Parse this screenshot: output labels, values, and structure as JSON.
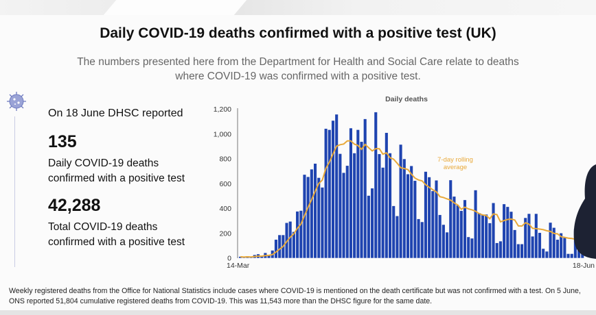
{
  "header": {
    "title": "Daily COVID-19 deaths confirmed with a positive test (UK)",
    "subtitle": "The numbers presented here from the Department for Health and Social Care relate to deaths where COVID-19 was confirmed with a positive test."
  },
  "summary": {
    "reported_on": "On 18 June DHSC reported",
    "daily_value": "135",
    "daily_label": "Daily COVID-19 deaths confirmed with a positive test",
    "total_value": "42,288",
    "total_label": "Total COVID-19 deaths confirmed with a positive test",
    "icon": "virus-icon"
  },
  "footnote": "Weekly registered deaths from the Office for National Statistics include cases where COVID-19 is mentioned on the death certificate but was not confirmed with a test. On 5 June, ONS reported 51,804 cumulative registered deaths from COVID-19. This was 11,543 more than the DHSC figure for the same date.",
  "chart_data": {
    "type": "bar",
    "title": "Daily deaths",
    "x_start": "14-Mar",
    "x_end": "18-Jun",
    "xtick_labels": [
      "14-Mar",
      "18-Jun"
    ],
    "ytick_labels": [
      "0",
      "200",
      "400",
      "600",
      "800",
      "1,000",
      "1,200"
    ],
    "ylim": [
      0,
      1200
    ],
    "grid": false,
    "bar_color": "#1f44b0",
    "line_color": "#e8a93a",
    "line_annotation": "7-day rolling average",
    "values": [
      10,
      4,
      14,
      6,
      24,
      30,
      12,
      40,
      20,
      60,
      147,
      184,
      184,
      282,
      293,
      210,
      374,
      380,
      670,
      652,
      713,
      759,
      645,
      567,
      1040,
      1031,
      1105,
      1155,
      838,
      685,
      742,
      1044,
      843,
      1031,
      935,
      1118,
      501,
      560,
      1173,
      836,
      727,
      1007,
      843,
      418,
      337,
      912,
      796,
      674,
      740,
      621,
      313,
      289,
      694,
      650,
      538,
      624,
      346,
      267,
      206,
      626,
      494,
      424,
      379,
      466,
      168,
      157,
      545,
      361,
      346,
      350,
      280,
      442,
      120,
      134,
      433,
      411,
      372,
      225,
      111,
      111,
      322,
      355,
      173,
      355,
      202,
      74,
      52,
      284,
      243,
      147,
      199,
      162,
      33,
      33,
      233,
      184,
      135
    ]
  }
}
